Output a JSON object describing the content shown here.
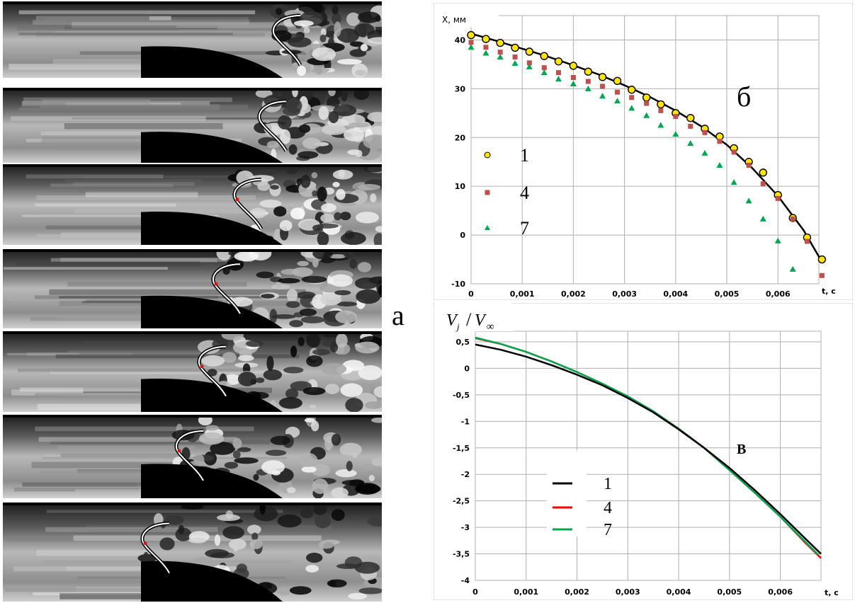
{
  "figure": {
    "panel_labels": {
      "a": "а",
      "b": "б",
      "v": "В"
    }
  },
  "frames": {
    "count": 7
  },
  "chart_data": [
    {
      "id": "b",
      "type": "scatter",
      "title": "",
      "ylabel": "X, мм",
      "xlabel": "t, c",
      "xlim": [
        0,
        0.0068
      ],
      "ylim": [
        -10,
        45
      ],
      "xticks": [
        0,
        0.001,
        0.002,
        0.003,
        0.004,
        0.005,
        0.006
      ],
      "xtick_labels": [
        "0",
        "0,001",
        "0,002",
        "0,003",
        "0,004",
        "0,005",
        "0,006"
      ],
      "yticks": [
        -10,
        0,
        10,
        20,
        30,
        40
      ],
      "ytick_labels": [
        "-10",
        "0",
        "10",
        "20",
        "30",
        "40"
      ],
      "grid": true,
      "legend_position": "left",
      "series": [
        {
          "name": "1",
          "marker": "circle",
          "color": "#ffe600",
          "x": [
            0,
            0.00029,
            0.00057,
            0.00086,
            0.00114,
            0.00143,
            0.00171,
            0.002,
            0.00229,
            0.00257,
            0.00286,
            0.00314,
            0.00343,
            0.00371,
            0.004,
            0.00429,
            0.00457,
            0.00486,
            0.00514,
            0.00543,
            0.00571,
            0.006,
            0.00629,
            0.00657,
            0.00686
          ],
          "y": [
            41,
            40.2,
            39.4,
            38.4,
            37.6,
            36.7,
            35.6,
            34.7,
            33.5,
            32.4,
            31.6,
            29.8,
            28.2,
            26.8,
            25,
            24,
            21.8,
            20.2,
            17.8,
            15,
            12.8,
            8.2,
            3.5,
            -0.5,
            -5
          ]
        },
        {
          "name": "4",
          "marker": "square",
          "color": "#c0504d",
          "x": [
            0,
            0.00029,
            0.00057,
            0.00086,
            0.00114,
            0.00143,
            0.00171,
            0.002,
            0.00229,
            0.00257,
            0.00286,
            0.00314,
            0.00343,
            0.00371,
            0.004,
            0.00429,
            0.00457,
            0.00486,
            0.00514,
            0.00543,
            0.00571,
            0.006,
            0.00629,
            0.00657,
            0.00686
          ],
          "y": [
            39.5,
            38.5,
            37.5,
            36.5,
            35.3,
            34.3,
            33.3,
            32.3,
            31.5,
            30.5,
            29.3,
            28.2,
            27,
            25.5,
            24.3,
            22.3,
            21,
            19.2,
            17,
            14.3,
            10.5,
            7.5,
            3.3,
            -1.3,
            -8.3
          ]
        },
        {
          "name": "7",
          "marker": "triangle",
          "color": "#00a650",
          "x": [
            0,
            0.00029,
            0.00057,
            0.00086,
            0.00114,
            0.00143,
            0.00171,
            0.002,
            0.00229,
            0.00257,
            0.00286,
            0.00314,
            0.00343,
            0.00371,
            0.004,
            0.00429,
            0.00457,
            0.00486,
            0.00514,
            0.00543,
            0.00571,
            0.006,
            0.00629
          ],
          "y": [
            38.5,
            37.3,
            36.5,
            35.2,
            34.5,
            33.3,
            32,
            31,
            30,
            28.5,
            27.5,
            26,
            24.5,
            22.5,
            20.7,
            18.8,
            16.8,
            14.3,
            10.8,
            7,
            3.3,
            -1.2,
            -7
          ]
        },
        {
          "name": "",
          "kind": "fit-line",
          "color": "#000000",
          "x": [
            0,
            0.0005,
            0.001,
            0.0015,
            0.002,
            0.0025,
            0.003,
            0.0035,
            0.004,
            0.0045,
            0.005,
            0.0055,
            0.006,
            0.0065,
            0.00686
          ],
          "y": [
            41.3,
            39.8,
            38.2,
            36.6,
            34.8,
            32.9,
            30.7,
            28.3,
            25.5,
            22.3,
            18.5,
            13.7,
            8,
            1,
            -5.5
          ]
        }
      ]
    },
    {
      "id": "v",
      "type": "line",
      "title": "",
      "ylabel": "V_j / V_∞",
      "ylabel_main": "V",
      "ylabel_main_sub": "j",
      "ylabel_sep": "/",
      "ylabel_den": "V",
      "ylabel_den_sub": "∞",
      "xlabel": "t, c",
      "xlim": [
        0,
        0.0068
      ],
      "ylim": [
        -4,
        0.7
      ],
      "xticks": [
        0,
        0.001,
        0.002,
        0.003,
        0.004,
        0.005,
        0.006
      ],
      "xtick_labels": [
        "0",
        "0,001",
        "0,002",
        "0,003",
        "0,004",
        "0,005",
        "0,006"
      ],
      "yticks": [
        -4,
        -3.5,
        -3,
        -2.5,
        -2,
        -1.5,
        -1,
        -0.5,
        0,
        0.5
      ],
      "ytick_labels": [
        "-4",
        "-3,5",
        "-3",
        "-2,5",
        "-2",
        "-1,5",
        "-1",
        "-0,5",
        "0",
        "0,5"
      ],
      "grid": true,
      "legend_position": "center-left",
      "series": [
        {
          "name": "1",
          "color": "#000000",
          "x": [
            0,
            0.0005,
            0.001,
            0.0015,
            0.002,
            0.0025,
            0.003,
            0.0035,
            0.004,
            0.0045,
            0.005,
            0.0055,
            0.006,
            0.0065,
            0.0068
          ],
          "y": [
            0.45,
            0.35,
            0.22,
            0.06,
            -0.12,
            -0.32,
            -0.56,
            -0.83,
            -1.15,
            -1.5,
            -1.88,
            -2.3,
            -2.75,
            -3.22,
            -3.5
          ]
        },
        {
          "name": "4",
          "color": "#ff0000",
          "x": [
            0,
            0.0005,
            0.001,
            0.0015,
            0.002,
            0.0025,
            0.003,
            0.0035,
            0.004,
            0.0045,
            0.005,
            0.0055,
            0.006,
            0.0065,
            0.0068
          ],
          "y": [
            0.57,
            0.46,
            0.31,
            0.13,
            -0.07,
            -0.29,
            -0.53,
            -0.81,
            -1.14,
            -1.5,
            -1.92,
            -2.35,
            -2.8,
            -3.3,
            -3.58
          ]
        },
        {
          "name": "7",
          "color": "#00a650",
          "x": [
            0,
            0.0005,
            0.001,
            0.0015,
            0.002,
            0.0025,
            0.003,
            0.0035,
            0.004,
            0.0045,
            0.005,
            0.0055,
            0.006,
            0.0065,
            0.00675
          ],
          "y": [
            0.58,
            0.46,
            0.31,
            0.13,
            -0.07,
            -0.29,
            -0.53,
            -0.81,
            -1.14,
            -1.5,
            -1.92,
            -2.35,
            -2.8,
            -3.28,
            -3.52
          ]
        }
      ]
    }
  ]
}
